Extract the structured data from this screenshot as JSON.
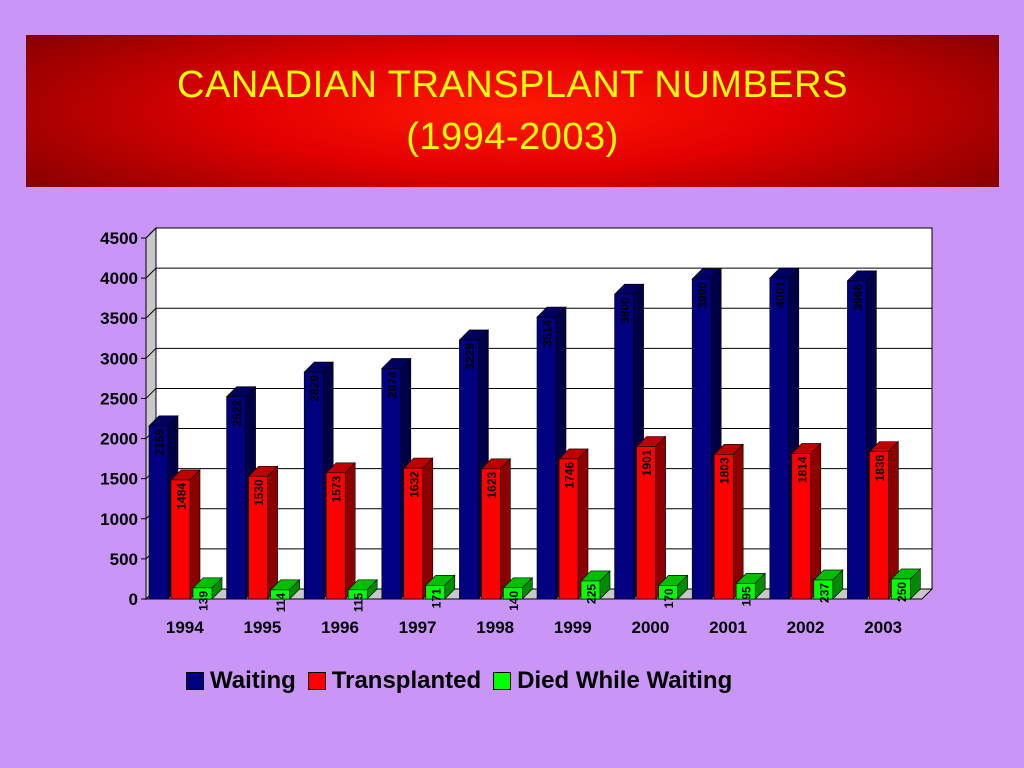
{
  "slide": {
    "title_line1": "CANADIAN TRANSPLANT NUMBERS",
    "title_line2": "(1994-2003)"
  },
  "chart_data": {
    "type": "bar",
    "title": "CANADIAN TRANSPLANT NUMBERS (1994-2003)",
    "categories": [
      "1994",
      "1995",
      "1996",
      "1997",
      "1998",
      "1999",
      "2000",
      "2001",
      "2002",
      "2003"
    ],
    "series": [
      {
        "name": "Waiting",
        "color": "#000080",
        "values": [
          2159,
          2522,
          2829,
          2874,
          3229,
          3514,
          3800,
          3990,
          4001,
          3966
        ]
      },
      {
        "name": "Transplanted",
        "color": "#ff0000",
        "values": [
          1484,
          1530,
          1573,
          1632,
          1623,
          1746,
          1901,
          1803,
          1814,
          1836
        ]
      },
      {
        "name": "Died While Waiting",
        "color": "#00ff00",
        "values": [
          139,
          114,
          115,
          171,
          140,
          225,
          170,
          195,
          237,
          250
        ]
      }
    ],
    "yticks": [
      0,
      500,
      1000,
      1500,
      2000,
      2500,
      3000,
      3500,
      4000,
      4500
    ],
    "ylim": [
      0,
      4500
    ],
    "grid": true,
    "legend_position": "bottom"
  }
}
